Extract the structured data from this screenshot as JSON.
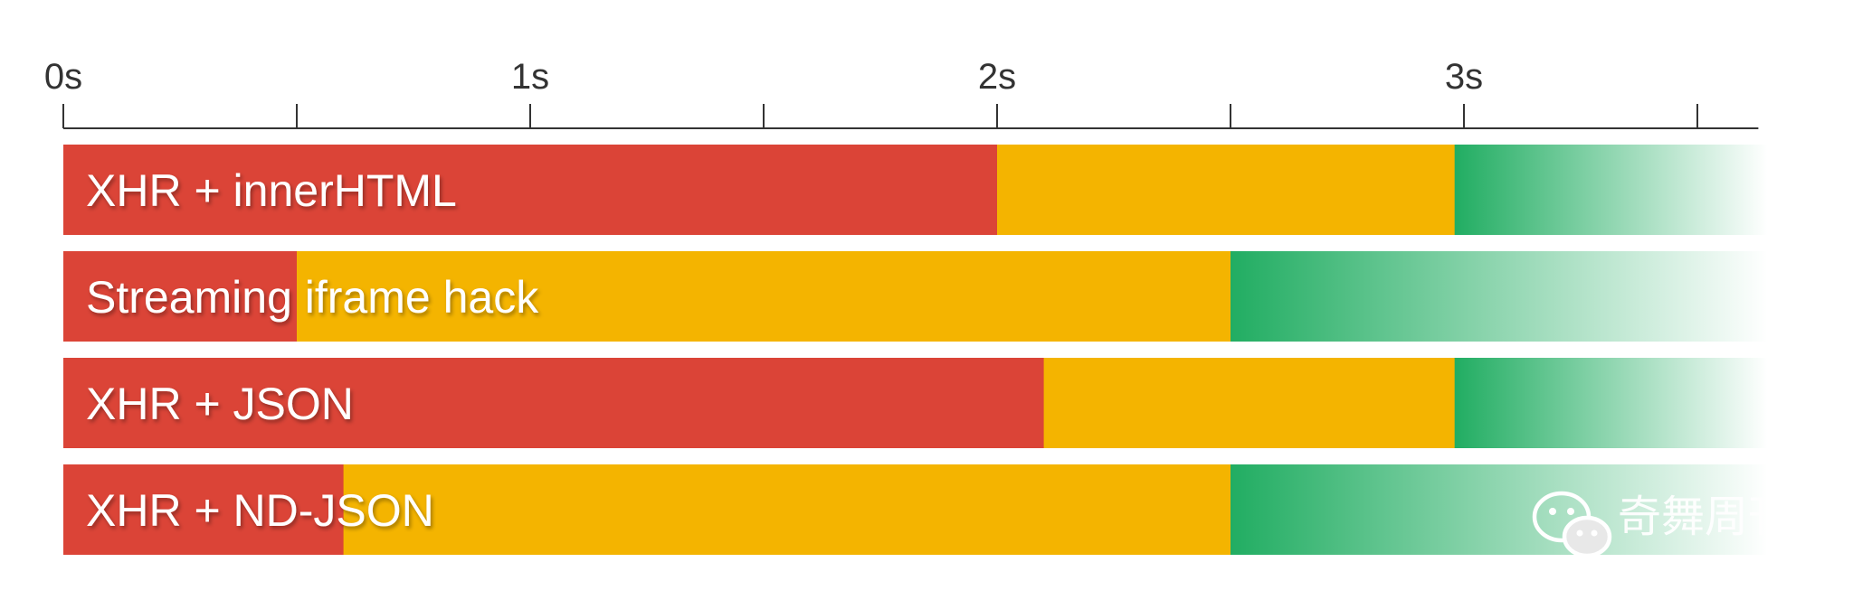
{
  "chart_data": {
    "type": "bar",
    "orientation": "horizontal",
    "stacked": true,
    "title": "",
    "xlabel": "",
    "ylabel": "",
    "x_unit": "s",
    "xlim": [
      0,
      3.65
    ],
    "x_ticks": [
      {
        "value": 0,
        "label": "0s"
      },
      {
        "value": 0.5,
        "label": ""
      },
      {
        "value": 1,
        "label": "1s"
      },
      {
        "value": 1.5,
        "label": ""
      },
      {
        "value": 2,
        "label": "2s"
      },
      {
        "value": 2.5,
        "label": ""
      },
      {
        "value": 3,
        "label": "3s"
      },
      {
        "value": 3.5,
        "label": ""
      }
    ],
    "grid": false,
    "legend": "none",
    "segment_colors": {
      "phase1": "#db4437",
      "phase2": "#f4b400",
      "phase3": "#21ad62"
    },
    "rows": [
      {
        "label": "XHR + innerHTML",
        "segments": [
          {
            "phase": "phase1",
            "start": 0,
            "end": 2.0
          },
          {
            "phase": "phase2",
            "start": 2.0,
            "end": 2.98
          },
          {
            "phase": "phase3",
            "start": 2.98,
            "end": 3.65,
            "fade": true
          }
        ]
      },
      {
        "label": "Streaming iframe hack",
        "segments": [
          {
            "phase": "phase1",
            "start": 0,
            "end": 0.5
          },
          {
            "phase": "phase2",
            "start": 0.5,
            "end": 2.5
          },
          {
            "phase": "phase3",
            "start": 2.5,
            "end": 3.65,
            "fade": true
          }
        ]
      },
      {
        "label": "XHR + JSON",
        "segments": [
          {
            "phase": "phase1",
            "start": 0,
            "end": 2.1
          },
          {
            "phase": "phase2",
            "start": 2.1,
            "end": 2.98
          },
          {
            "phase": "phase3",
            "start": 2.98,
            "end": 3.65,
            "fade": true
          }
        ]
      },
      {
        "label": "XHR + ND-JSON",
        "segments": [
          {
            "phase": "phase1",
            "start": 0,
            "end": 0.6
          },
          {
            "phase": "phase2",
            "start": 0.6,
            "end": 2.5
          },
          {
            "phase": "phase3",
            "start": 2.5,
            "end": 3.65,
            "fade": true
          }
        ]
      }
    ]
  },
  "watermark": {
    "text": "奇舞周刊",
    "icon": "wechat-icon"
  }
}
